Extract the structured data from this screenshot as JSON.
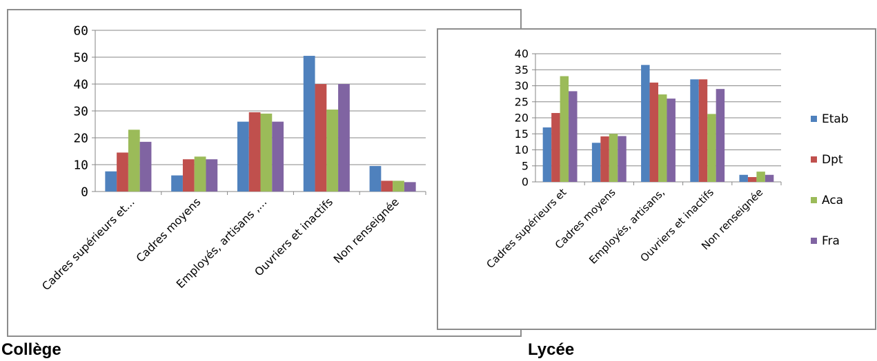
{
  "captions": {
    "college": "Collège",
    "lycee": "Lycée"
  },
  "colors": {
    "Etab": "#4f81bd",
    "Dpt": "#c0504d",
    "Aca": "#9bbb59",
    "Fra": "#8064a2"
  },
  "chart_data": [
    {
      "type": "bar",
      "caption": "Collège",
      "categories": [
        "Cadres supérieurs et...",
        "Cadres moyens",
        "Employés, artisans ,...",
        "Ouvriers et inactifs",
        "Non renseignée"
      ],
      "series": [
        {
          "name": "Etab",
          "values": [
            7.5,
            6.0,
            26.0,
            50.5,
            9.5
          ]
        },
        {
          "name": "Dpt",
          "values": [
            14.5,
            12.0,
            29.5,
            40.0,
            4.0
          ]
        },
        {
          "name": "Aca",
          "values": [
            23.0,
            13.0,
            29.0,
            30.5,
            4.0
          ]
        },
        {
          "name": "Fra",
          "values": [
            18.5,
            12.0,
            26.0,
            40.0,
            3.5
          ]
        }
      ],
      "yticks": [
        "0",
        "10",
        "20",
        "30",
        "40",
        "50",
        "60"
      ],
      "ylim": [
        0,
        60
      ],
      "grid": true,
      "legend": "none"
    },
    {
      "type": "bar",
      "caption": "Lycée",
      "categories": [
        "Cadres supérieurs et",
        "Cadres moyens",
        "Employés, artisans,",
        "Ouvriers et inactifs",
        "Non renseignée"
      ],
      "series": [
        {
          "name": "Etab",
          "values": [
            17.0,
            12.2,
            36.5,
            32.0,
            2.2
          ]
        },
        {
          "name": "Dpt",
          "values": [
            21.5,
            14.2,
            31.0,
            32.0,
            1.5
          ]
        },
        {
          "name": "Aca",
          "values": [
            33.0,
            15.0,
            27.3,
            21.2,
            3.2
          ]
        },
        {
          "name": "Fra",
          "values": [
            28.3,
            14.3,
            26.0,
            29.0,
            2.2
          ]
        }
      ],
      "yticks": [
        "0",
        "5",
        "10",
        "15",
        "20",
        "25",
        "30",
        "35",
        "40"
      ],
      "ylim": [
        0,
        40
      ],
      "grid": true,
      "legend": "right"
    }
  ]
}
